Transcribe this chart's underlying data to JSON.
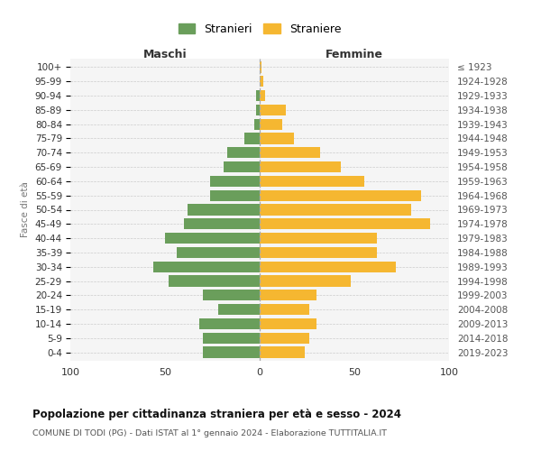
{
  "age_groups": [
    "0-4",
    "5-9",
    "10-14",
    "15-19",
    "20-24",
    "25-29",
    "30-34",
    "35-39",
    "40-44",
    "45-49",
    "50-54",
    "55-59",
    "60-64",
    "65-69",
    "70-74",
    "75-79",
    "80-84",
    "85-89",
    "90-94",
    "95-99",
    "100+"
  ],
  "birth_years": [
    "2019-2023",
    "2014-2018",
    "2009-2013",
    "2004-2008",
    "1999-2003",
    "1994-1998",
    "1989-1993",
    "1984-1988",
    "1979-1983",
    "1974-1978",
    "1969-1973",
    "1964-1968",
    "1959-1963",
    "1954-1958",
    "1949-1953",
    "1944-1948",
    "1939-1943",
    "1934-1938",
    "1929-1933",
    "1924-1928",
    "≤ 1923"
  ],
  "males": [
    30,
    30,
    32,
    22,
    30,
    48,
    56,
    44,
    50,
    40,
    38,
    26,
    26,
    19,
    17,
    8,
    3,
    2,
    2,
    0,
    0
  ],
  "females": [
    24,
    26,
    30,
    26,
    30,
    48,
    72,
    62,
    62,
    90,
    80,
    85,
    55,
    43,
    32,
    18,
    12,
    14,
    3,
    2,
    1
  ],
  "male_color": "#6a9e5b",
  "female_color": "#f5b731",
  "grid_color": "#cccccc",
  "bg_color": "#f5f5f5",
  "title": "Popolazione per cittadinanza straniera per età e sesso - 2024",
  "subtitle": "COMUNE DI TODI (PG) - Dati ISTAT al 1° gennaio 2024 - Elaborazione TUTTITALIA.IT",
  "xlabel_left": "Maschi",
  "xlabel_right": "Femmine",
  "ylabel_left": "Fasce di età",
  "legend_male": "Stranieri",
  "legend_female": "Straniere",
  "xlim": 100
}
